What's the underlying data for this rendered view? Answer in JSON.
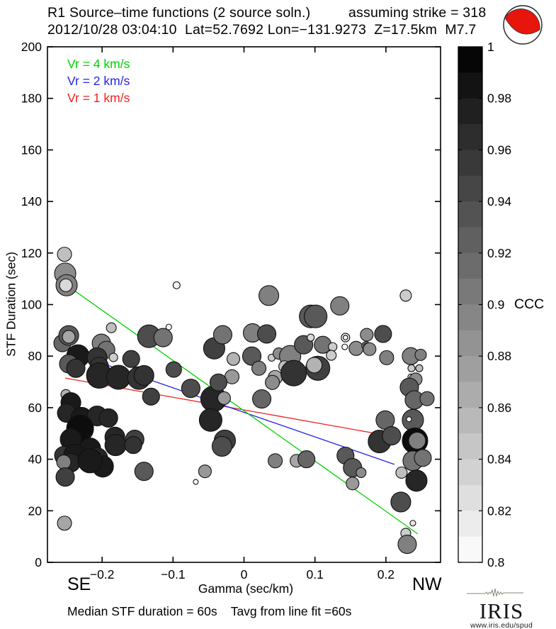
{
  "header": {
    "title_left": "R1 Source–time functions (2 source soln.)",
    "title_right": "assuming strike = 318",
    "subtitle": "2012/10/28 03:04:10  Lat=52.7692 Lon=−131.9273  Z=17.5km  M7.7"
  },
  "legend": {
    "items": [
      {
        "label": "Vr = 4 km/s",
        "color": "#00d000"
      },
      {
        "label": "Vr = 2 km/s",
        "color": "#2222ee"
      },
      {
        "label": "Vr = 1 km/s",
        "color": "#ee2222"
      }
    ]
  },
  "beachball": {
    "fill": "#e8150d",
    "outline": "#222222"
  },
  "chart_data": {
    "type": "scatter",
    "title": "R1 Source–time functions (2 source soln.)  assuming strike = 318",
    "subtitle": "2012/10/28 03:04:10  Lat=52.7692 Lon=−131.9273  Z=17.5km  M7.7",
    "xlabel": "Gamma (sec/km)",
    "ylabel": "STF Duration (sec)",
    "corner_labels": {
      "left": "SE",
      "right": "NW"
    },
    "xlim": [
      -0.277,
      0.277
    ],
    "ylim": [
      0,
      200
    ],
    "x_ticks": {
      "values": [
        -0.2,
        -0.1,
        0,
        0.1,
        0.2
      ],
      "labels": [
        "−0.2",
        "−0.1",
        "0",
        "0.1",
        "0.2"
      ]
    },
    "y_ticks": {
      "values": [
        0,
        20,
        40,
        60,
        80,
        100,
        120,
        140,
        160,
        180,
        200
      ],
      "labels": [
        "0",
        "20",
        "40",
        "60",
        "80",
        "100",
        "120",
        "140",
        "160",
        "180",
        "200"
      ]
    },
    "grid": false,
    "colorbar": {
      "label": "CCC",
      "min": 0.8,
      "max": 1.0,
      "segments": 20,
      "tick_values": [
        1,
        0.98,
        0.96,
        0.94,
        0.92,
        0.9,
        0.88,
        0.86,
        0.84,
        0.82,
        0.8
      ],
      "tick_labels": [
        "1",
        "0.98",
        "0.96",
        "0.94",
        "0.92",
        "0.9",
        "0.88",
        "0.86",
        "0.84",
        "0.82",
        "0.8"
      ]
    },
    "trend_lines": [
      {
        "name": "Vr = 1 km/s",
        "color": "#ee2222",
        "x1": -0.252,
        "y1": 71.5,
        "x2": 0.186,
        "y2": 50
      },
      {
        "name": "Vr = 2 km/s",
        "color": "#2222ee",
        "x1": -0.245,
        "y1": 81.5,
        "x2": 0.212,
        "y2": 38
      },
      {
        "name": "Vr = 4 km/s",
        "color": "#00d000",
        "x1": -0.242,
        "y1": 106,
        "x2": 0.245,
        "y2": 11
      }
    ],
    "points": [
      {
        "g": -0.253,
        "d": 119.5,
        "r": 10,
        "c": 0.85
      },
      {
        "g": -0.252,
        "d": 112,
        "r": 15,
        "c": 0.89
      },
      {
        "g": -0.25,
        "d": 107.5,
        "r": 15,
        "c": 0.9
      },
      {
        "g": -0.251,
        "d": 107.5,
        "r": 9,
        "c": 0.83
      },
      {
        "g": -0.095,
        "d": 107.5,
        "r": 5,
        "c": 0.81
      },
      {
        "g": -0.187,
        "d": 91,
        "r": 7,
        "c": 0.85
      },
      {
        "g": -0.256,
        "d": 85,
        "r": 12,
        "c": 0.92
      },
      {
        "g": -0.247,
        "d": 88,
        "r": 14,
        "c": 0.93
      },
      {
        "g": -0.247,
        "d": 87.5,
        "r": 9,
        "c": 0.87
      },
      {
        "g": -0.234,
        "d": 80,
        "r": 16,
        "c": 0.98
      },
      {
        "g": -0.201,
        "d": 85,
        "r": 13,
        "c": 0.9
      },
      {
        "g": -0.194,
        "d": 82.5,
        "r": 12,
        "c": 0.91
      },
      {
        "g": -0.184,
        "d": 79.5,
        "r": 6,
        "c": 0.84
      },
      {
        "g": -0.247,
        "d": 77,
        "r": 13,
        "c": 0.93
      },
      {
        "g": -0.237,
        "d": 75.3,
        "r": 13,
        "c": 0.96
      },
      {
        "g": -0.207,
        "d": 79.4,
        "r": 14,
        "c": 0.96
      },
      {
        "g": -0.204,
        "d": 76,
        "r": 13,
        "c": 0.96
      },
      {
        "g": -0.134,
        "d": 87.7,
        "r": 16,
        "c": 0.94
      },
      {
        "g": -0.114,
        "d": 87.2,
        "r": 13,
        "c": 0.91
      },
      {
        "g": -0.106,
        "d": 91.3,
        "r": 4,
        "c": 0.8
      },
      {
        "g": -0.159,
        "d": 78.9,
        "r": 12,
        "c": 0.95
      },
      {
        "g": -0.204,
        "d": 72.5,
        "r": 18,
        "c": 0.97
      },
      {
        "g": -0.177,
        "d": 71.8,
        "r": 17,
        "c": 0.97
      },
      {
        "g": -0.148,
        "d": 71.5,
        "r": 16,
        "c": 0.96
      },
      {
        "g": -0.141,
        "d": 72.5,
        "r": 14,
        "c": 0.96
      },
      {
        "g": -0.099,
        "d": 74.8,
        "r": 11,
        "c": 0.94
      },
      {
        "g": -0.131,
        "d": 64.3,
        "r": 12,
        "c": 0.95
      },
      {
        "g": -0.075,
        "d": 67.5,
        "r": 13,
        "c": 0.94
      },
      {
        "g": -0.043,
        "d": 63.4,
        "r": 18,
        "c": 0.97
      },
      {
        "g": -0.028,
        "d": 63.7,
        "r": 9,
        "c": 0.88
      },
      {
        "g": -0.047,
        "d": 55.2,
        "r": 16,
        "c": 0.97
      },
      {
        "g": -0.027,
        "d": 47.2,
        "r": 15,
        "c": 0.95
      },
      {
        "g": -0.042,
        "d": 83,
        "r": 15,
        "c": 0.95
      },
      {
        "g": -0.03,
        "d": 88.3,
        "r": 13,
        "c": 0.91
      },
      {
        "g": -0.015,
        "d": 78.9,
        "r": 9,
        "c": 0.86
      },
      {
        "g": -0.017,
        "d": 72,
        "r": 10,
        "c": 0.88
      },
      {
        "g": -0.036,
        "d": 69.8,
        "r": 12,
        "c": 0.94
      },
      {
        "g": -0.031,
        "d": 45,
        "r": 14,
        "c": 0.94
      },
      {
        "g": -0.055,
        "d": 35.3,
        "r": 9,
        "c": 0.88
      },
      {
        "g": -0.068,
        "d": 31.2,
        "r": 3.5,
        "c": 0.8
      },
      {
        "g": -0.141,
        "d": 35.3,
        "r": 13,
        "c": 0.93
      },
      {
        "g": 0.035,
        "d": 103.5,
        "r": 14,
        "c": 0.9
      },
      {
        "g": 0.094,
        "d": 95.4,
        "r": 16,
        "c": 0.93
      },
      {
        "g": 0.101,
        "d": 95.4,
        "r": 16,
        "c": 0.93
      },
      {
        "g": 0.135,
        "d": 99.5,
        "r": 13,
        "c": 0.9
      },
      {
        "g": 0.228,
        "d": 103.5,
        "r": 8,
        "c": 0.84
      },
      {
        "g": 0.012,
        "d": 89,
        "r": 13,
        "c": 0.9
      },
      {
        "g": 0.032,
        "d": 88.6,
        "r": 13,
        "c": 0.94
      },
      {
        "g": 0.011,
        "d": 80,
        "r": 13,
        "c": 0.93
      },
      {
        "g": 0.039,
        "d": 79.4,
        "r": 5,
        "c": 0.84
      },
      {
        "g": 0.049,
        "d": 81,
        "r": 8,
        "c": 0.89
      },
      {
        "g": 0.065,
        "d": 80,
        "r": 15,
        "c": 0.9
      },
      {
        "g": 0.084,
        "d": 84.4,
        "r": 13,
        "c": 0.93
      },
      {
        "g": 0.094,
        "d": 87.2,
        "r": 5,
        "c": 0.83
      },
      {
        "g": 0.111,
        "d": 84.4,
        "r": 12,
        "c": 0.91
      },
      {
        "g": 0.125,
        "d": 83.6,
        "r": 6,
        "c": 0.84
      },
      {
        "g": 0.123,
        "d": 80.3,
        "r": 7,
        "c": 0.84
      },
      {
        "g": 0.057,
        "d": 76,
        "r": 8,
        "c": 0.85
      },
      {
        "g": 0.021,
        "d": 75.3,
        "r": 10,
        "c": 0.9
      },
      {
        "g": 0.044,
        "d": 71.7,
        "r": 10,
        "c": 0.87
      },
      {
        "g": 0.07,
        "d": 73.4,
        "r": 18,
        "c": 0.96
      },
      {
        "g": 0.104,
        "d": 75.3,
        "r": 17,
        "c": 0.95
      },
      {
        "g": 0.099,
        "d": 76.5,
        "r": 11,
        "c": 0.86
      },
      {
        "g": 0.04,
        "d": 69.8,
        "r": 10,
        "c": 0.89
      },
      {
        "g": 0.143,
        "d": 87.2,
        "r": 6,
        "c": 0.8,
        "s": "dr"
      },
      {
        "g": 0.142,
        "d": 83.6,
        "r": 4,
        "c": 0.8
      },
      {
        "g": 0.158,
        "d": 83,
        "r": 10,
        "c": 0.89
      },
      {
        "g": 0.173,
        "d": 88.3,
        "r": 9,
        "c": 0.89
      },
      {
        "g": 0.172,
        "d": 84,
        "r": 6,
        "c": 0.9
      },
      {
        "g": 0.172,
        "d": 84,
        "r": 3.5,
        "c": 0.8
      },
      {
        "g": 0.177,
        "d": 82.7,
        "r": 9,
        "c": 0.89
      },
      {
        "g": 0.196,
        "d": 88.6,
        "r": 12,
        "c": 0.94
      },
      {
        "g": 0.201,
        "d": 79.4,
        "r": 10,
        "c": 0.9
      },
      {
        "g": 0.025,
        "d": 63.4,
        "r": 13,
        "c": 0.92
      },
      {
        "g": 0.235,
        "d": 80,
        "r": 12,
        "c": 0.9
      },
      {
        "g": 0.249,
        "d": 80.5,
        "r": 8,
        "c": 0.9
      },
      {
        "g": 0.236,
        "d": 75.3,
        "r": 5,
        "c": 0.84
      },
      {
        "g": 0.247,
        "d": 75.3,
        "r": 5,
        "c": 0.85
      },
      {
        "g": 0.235,
        "d": 72,
        "r": 4,
        "c": 0.83
      },
      {
        "g": 0.242,
        "d": 71,
        "r": 9,
        "c": 0.89
      },
      {
        "g": 0.233,
        "d": 67.9,
        "r": 13,
        "c": 0.93
      },
      {
        "g": 0.24,
        "d": 63,
        "r": 13,
        "c": 0.92
      },
      {
        "g": 0.258,
        "d": 63.5,
        "r": 10,
        "c": 0.91
      },
      {
        "g": 0.199,
        "d": 55.2,
        "r": 13,
        "c": 0.92
      },
      {
        "g": 0.238,
        "d": 55.2,
        "r": 15,
        "c": 0.93
      },
      {
        "g": 0.2325,
        "d": 55.5,
        "r": 3.5,
        "c": 0.8
      },
      {
        "g": 0.191,
        "d": 46.9,
        "r": 16,
        "c": 0.96
      },
      {
        "g": 0.208,
        "d": 49.1,
        "r": 13,
        "c": 0.94
      },
      {
        "g": 0.241,
        "d": 47.2,
        "r": 18,
        "c": 0.99
      },
      {
        "g": 0.244,
        "d": 47.2,
        "r": 12,
        "c": 0.9
      },
      {
        "g": 0.238,
        "d": 39.4,
        "r": 14,
        "c": 0.91
      },
      {
        "g": 0.252,
        "d": 40.5,
        "r": 12,
        "c": 0.91
      },
      {
        "g": 0.222,
        "d": 34.8,
        "r": 8,
        "c": 0.85
      },
      {
        "g": 0.243,
        "d": 31.7,
        "r": 15,
        "c": 0.97
      },
      {
        "g": 0.221,
        "d": 23.4,
        "r": 14,
        "c": 0.94
      },
      {
        "g": 0.238,
        "d": 15.2,
        "r": 4,
        "c": 0.82
      },
      {
        "g": 0.228,
        "d": 11.3,
        "r": 7,
        "c": 0.84
      },
      {
        "g": 0.23,
        "d": 7,
        "r": 13,
        "c": 0.9
      },
      {
        "g": 0.143,
        "d": 41.4,
        "r": 12,
        "c": 0.93
      },
      {
        "g": 0.153,
        "d": 36.7,
        "r": 13,
        "c": 0.93
      },
      {
        "g": 0.165,
        "d": 34.8,
        "r": 7,
        "c": 0.89
      },
      {
        "g": 0.153,
        "d": 30.6,
        "r": 9,
        "c": 0.88
      },
      {
        "g": 0.044,
        "d": 39.4,
        "r": 10,
        "c": 0.9
      },
      {
        "g": 0.074,
        "d": 39.4,
        "r": 9,
        "c": 0.87
      },
      {
        "g": 0.088,
        "d": 40,
        "r": 12,
        "c": 0.92
      },
      {
        "g": -0.251,
        "d": 65.1,
        "r": 7,
        "c": 0.86
      },
      {
        "g": -0.244,
        "d": 62,
        "r": 14,
        "c": 0.98
      },
      {
        "g": -0.25,
        "d": 57.9,
        "r": 13,
        "c": 0.97
      },
      {
        "g": -0.229,
        "d": 56,
        "r": 15,
        "c": 0.98
      },
      {
        "g": -0.207,
        "d": 56.8,
        "r": 14,
        "c": 0.97
      },
      {
        "g": -0.191,
        "d": 56,
        "r": 13,
        "c": 0.97
      },
      {
        "g": -0.231,
        "d": 51.9,
        "r": 19,
        "c": 0.99
      },
      {
        "g": -0.244,
        "d": 47.7,
        "r": 15,
        "c": 0.98
      },
      {
        "g": -0.182,
        "d": 48.6,
        "r": 14,
        "c": 0.97
      },
      {
        "g": -0.154,
        "d": 47.7,
        "r": 13,
        "c": 0.95
      },
      {
        "g": -0.217,
        "d": 44.1,
        "r": 15,
        "c": 0.98
      },
      {
        "g": -0.207,
        "d": 40.3,
        "r": 15,
        "c": 0.97
      },
      {
        "g": -0.254,
        "d": 41.4,
        "r": 13,
        "c": 0.96
      },
      {
        "g": -0.239,
        "d": 41.7,
        "r": 15,
        "c": 0.98
      },
      {
        "g": -0.244,
        "d": 38.6,
        "r": 13,
        "c": 0.97
      },
      {
        "g": -0.254,
        "d": 38.9,
        "r": 10,
        "c": 0.9
      },
      {
        "g": -0.252,
        "d": 33.1,
        "r": 13,
        "c": 0.95
      },
      {
        "g": -0.199,
        "d": 37.2,
        "r": 15,
        "c": 0.98
      },
      {
        "g": -0.181,
        "d": 45.5,
        "r": 15,
        "c": 0.97
      },
      {
        "g": -0.156,
        "d": 45.5,
        "r": 12,
        "c": 0.96
      },
      {
        "g": -0.217,
        "d": 39.4,
        "r": 17,
        "c": 0.98
      },
      {
        "g": -0.253,
        "d": 15.2,
        "r": 10,
        "c": 0.87
      }
    ]
  },
  "footer": {
    "stats": "Median STF duration = 60s    Tavg from line fit =60s",
    "logo_text": "IRIS",
    "logo_url": "www.iris.edu/spud"
  }
}
